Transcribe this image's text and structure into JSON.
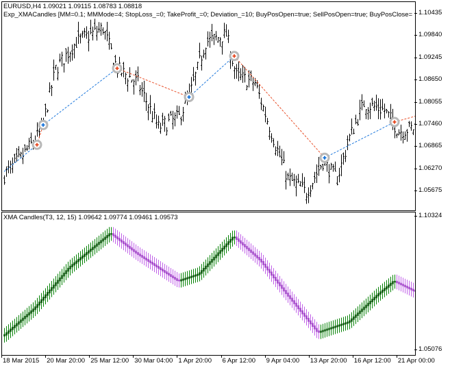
{
  "main_pane": {
    "symbol_line": "EURUSD,H4  1.09021 1.09115 1.08783 1.08818",
    "expert_line": "Exp_XMACandles [MM=0.1; MMMode=4; StopLoss_=0; TakeProfit_=0; Deviation_=10; BuyPosOpen=true; SellPosOpen=true; BuyPosClose=",
    "price_labels": [
      "1.10435",
      "1.09840",
      "1.09245",
      "1.08650",
      "1.08055",
      "1.07460",
      "1.06865",
      "1.06270",
      "1.05675"
    ],
    "bar_color": "#000000"
  },
  "sub_pane": {
    "title": "XMA Candles(T3, 12, 15) 1.09642 1.09774 1.09461 1.09573",
    "price_labels": [
      "1.10324",
      "1.05076"
    ],
    "up_color": "#008000",
    "down_color": "#c060e8"
  },
  "time_labels": [
    "18 Mar 2015",
    "20 Mar 20:00",
    "25 Mar 12:00",
    "30 Mar 04:00",
    "1 Apr 20:00",
    "6 Apr 12:00",
    "9 Apr 04:00",
    "13 Apr 20:00",
    "16 Apr 12:00",
    "21 Apr 00:00"
  ],
  "chart_data": {
    "type": "candlestick",
    "main_ylim": [
      1.0545,
      1.1075
    ],
    "main_price_path": [
      [
        0,
        1.061
      ],
      [
        8,
        1.0656
      ],
      [
        18,
        1.0729
      ],
      [
        25,
        1.0895
      ],
      [
        35,
        1.0968
      ],
      [
        48,
        1.1005
      ],
      [
        55,
        1.0895
      ],
      [
        65,
        1.0858
      ],
      [
        75,
        1.0738
      ],
      [
        85,
        1.0766
      ],
      [
        90,
        1.0821
      ],
      [
        98,
        1.0968
      ],
      [
        108,
        1.0987
      ],
      [
        113,
        1.0876
      ],
      [
        122,
        1.0858
      ],
      [
        132,
        1.0692
      ],
      [
        138,
        1.0601
      ],
      [
        147,
        1.0564
      ],
      [
        155,
        1.0647
      ],
      [
        162,
        1.0601
      ],
      [
        168,
        1.0711
      ],
      [
        175,
        1.0803
      ],
      [
        185,
        1.0784
      ],
      [
        192,
        1.0729
      ],
      [
        200,
        1.0738
      ]
    ],
    "sub_ylim": [
      1.05076,
      1.10324
    ],
    "xma_path": [
      [
        0,
        1.0562
      ],
      [
        15,
        1.067
      ],
      [
        32,
        1.0832
      ],
      [
        52,
        1.0967
      ],
      [
        65,
        1.0886
      ],
      [
        85,
        1.0778
      ],
      [
        95,
        1.0805
      ],
      [
        112,
        1.0954
      ],
      [
        125,
        1.0859
      ],
      [
        138,
        1.0724
      ],
      [
        153,
        1.0575
      ],
      [
        168,
        1.0616
      ],
      [
        182,
        1.0724
      ],
      [
        190,
        1.0778
      ],
      [
        200,
        1.0738
      ]
    ],
    "trades": [
      {
        "bar": 16,
        "price": 1.0692,
        "type": "sell"
      },
      {
        "bar": 19,
        "price": 1.0745,
        "type": "buy"
      },
      {
        "bar": 55,
        "price": 1.0897,
        "type": "sell"
      },
      {
        "bar": 90,
        "price": 1.082,
        "type": "buy"
      },
      {
        "bar": 112,
        "price": 1.093,
        "type": "sell"
      },
      {
        "bar": 156,
        "price": 1.0657,
        "type": "buy"
      },
      {
        "bar": 190,
        "price": 1.0753,
        "type": "sell"
      }
    ],
    "buy_line_color": "#1e78dc",
    "sell_line_color": "#e8502a"
  }
}
